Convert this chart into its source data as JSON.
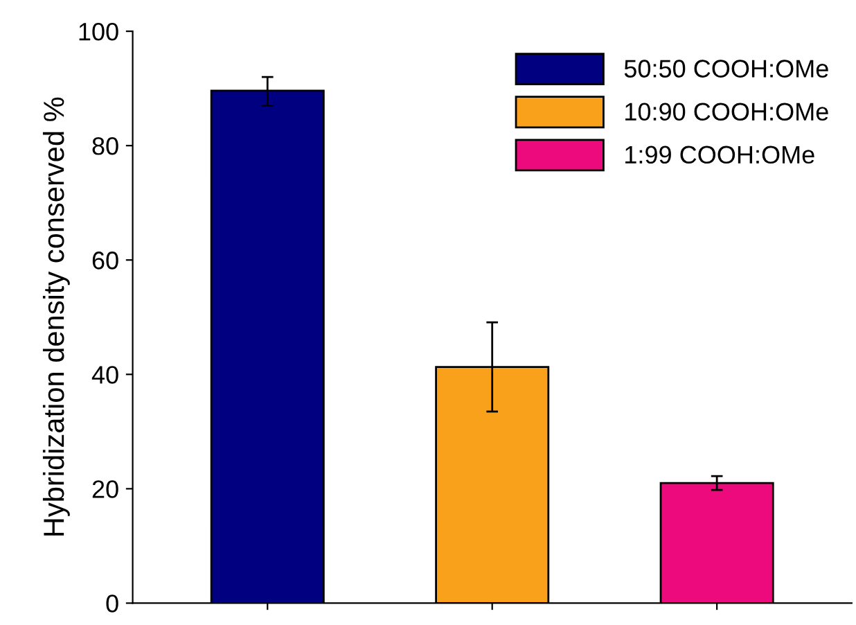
{
  "chart_data": {
    "type": "bar",
    "ylabel": "Hybridization density conserved %",
    "categories": [
      null,
      null,
      null
    ],
    "series": [
      {
        "name": "50:50 COOH:OMe",
        "color": "#000080",
        "values": [
          89.6,
          null,
          null
        ],
        "errors": [
          [
            87.0,
            92.0
          ],
          null,
          null
        ]
      },
      {
        "name": "10:90 COOH:OMe",
        "color": "#f9a11b",
        "values": [
          null,
          41.3,
          null
        ],
        "errors": [
          null,
          [
            33.5,
            49.1
          ],
          null
        ]
      },
      {
        "name": "1:99 COOH:OMe",
        "color": "#ec0a7d",
        "values": [
          null,
          null,
          21.0
        ],
        "errors": [
          null,
          null,
          [
            19.8,
            22.2
          ]
        ]
      }
    ],
    "ylim": [
      0,
      100
    ],
    "yticks": [
      0,
      20,
      40,
      60,
      80,
      100
    ],
    "legend": "top right",
    "grid": false
  }
}
